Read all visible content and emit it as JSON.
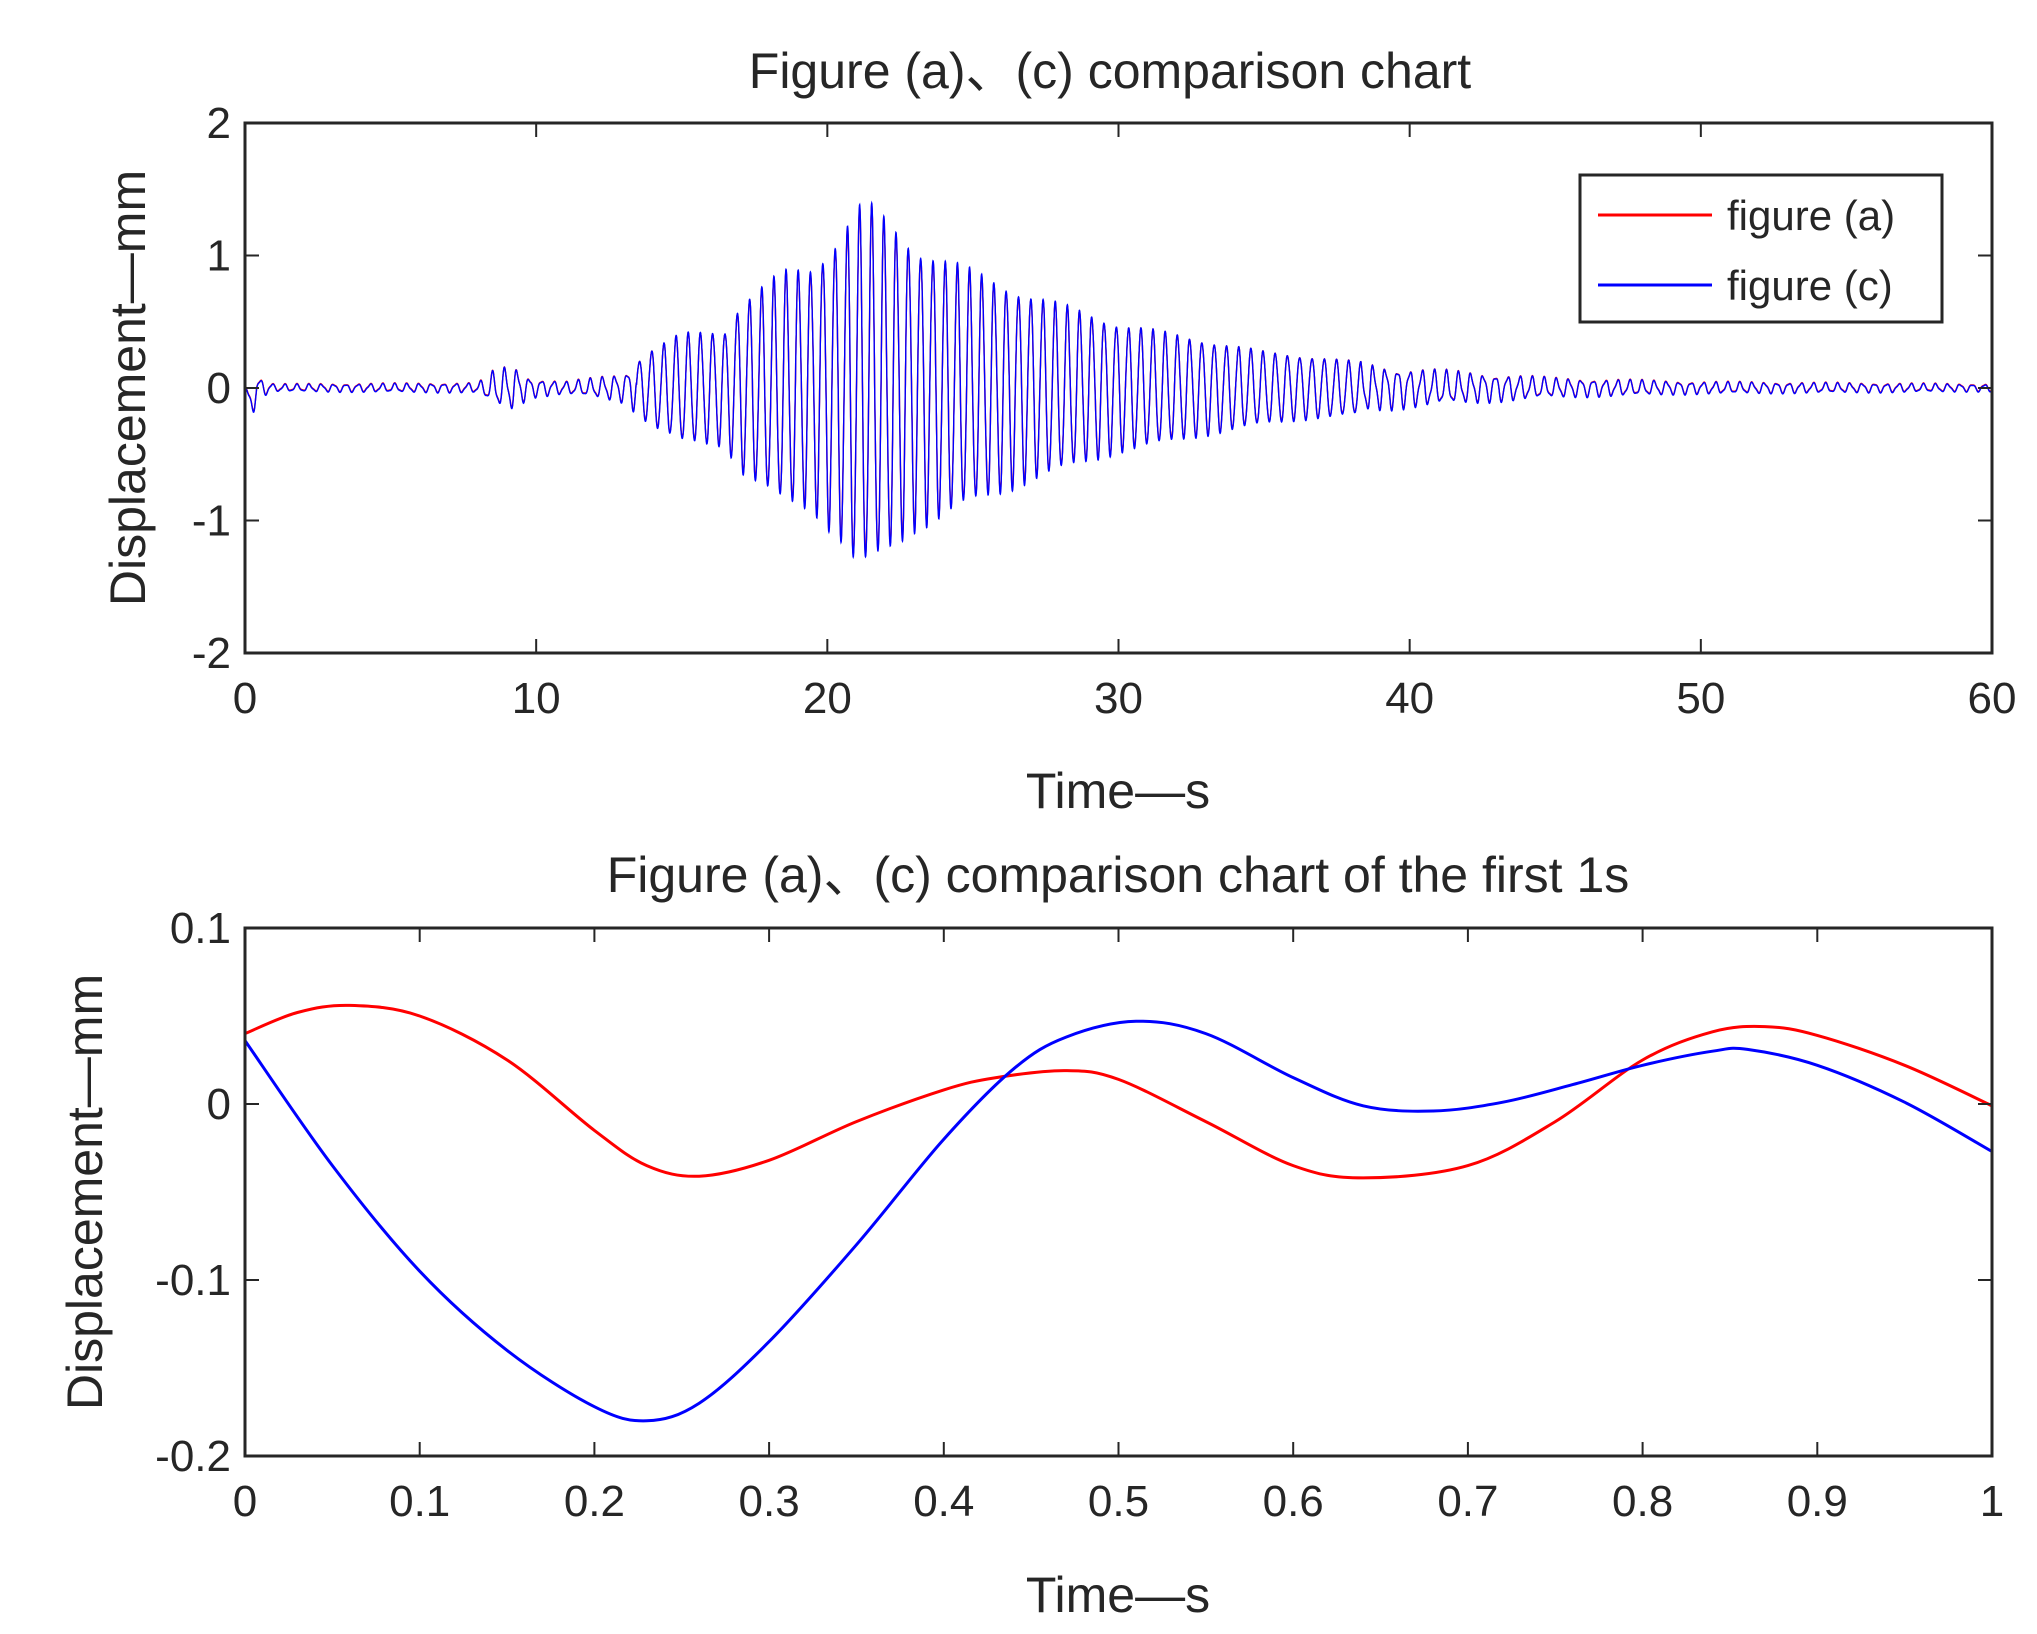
{
  "chart_data": [
    {
      "type": "line",
      "title": "Figure (a)、(c) comparison chart",
      "xlabel": "Time—s",
      "ylabel": "Displacement—mm",
      "xlim": [
        0,
        60
      ],
      "ylim": [
        -2,
        2
      ],
      "xticks": [
        0,
        10,
        20,
        30,
        40,
        50,
        60
      ],
      "yticks": [
        -2,
        -1,
        0,
        1,
        2
      ],
      "xtick_labels": [
        "0",
        "10",
        "20",
        "30",
        "40",
        "50",
        "60"
      ],
      "ytick_labels": [
        "-2",
        "-1",
        "0",
        "1",
        "2"
      ],
      "grid": false,
      "legend_position": "top-right",
      "legend": [
        "figure (a)",
        "figure (c)"
      ],
      "series": [
        {
          "name": "figure (a)",
          "color": "#ff0000"
        },
        {
          "name": "figure (c)",
          "color": "#0000ff"
        }
      ],
      "oscillation_period_s": 0.42,
      "envelope": {
        "x": [
          0,
          0.3,
          1,
          8,
          8.6,
          9.2,
          9.8,
          11,
          12,
          13,
          14,
          15,
          16.5,
          17,
          18.5,
          19.5,
          20.5,
          21,
          21.5,
          22,
          23,
          25,
          27,
          30,
          35,
          40,
          45,
          50,
          55,
          60
        ],
        "y": [
          0.06,
          0.1,
          0.03,
          0.04,
          0.15,
          0.18,
          0.08,
          0.05,
          0.08,
          0.12,
          0.3,
          0.42,
          0.45,
          0.65,
          0.9,
          0.95,
          1.2,
          1.4,
          1.4,
          1.3,
          1.1,
          0.9,
          0.72,
          0.5,
          0.28,
          0.16,
          0.08,
          0.05,
          0.04,
          0.03
        ]
      }
    },
    {
      "type": "line",
      "title": "Figure (a)、(c) comparison chart of the first 1s",
      "xlabel": "Time—s",
      "ylabel": "Displacement—mm",
      "xlim": [
        0,
        1
      ],
      "ylim": [
        -0.2,
        0.1
      ],
      "xticks": [
        0,
        0.1,
        0.2,
        0.3,
        0.4,
        0.5,
        0.6,
        0.7,
        0.8,
        0.9,
        1
      ],
      "yticks": [
        -0.2,
        -0.1,
        0,
        0.1
      ],
      "xtick_labels": [
        "0",
        "0.1",
        "0.2",
        "0.3",
        "0.4",
        "0.5",
        "0.6",
        "0.7",
        "0.8",
        "0.9",
        "1"
      ],
      "ytick_labels": [
        "-0.2",
        "-0.1",
        "0",
        "0.1"
      ],
      "grid": false,
      "series": [
        {
          "name": "figure (a)",
          "color": "#ff0000",
          "x": [
            0,
            0.03,
            0.06,
            0.1,
            0.15,
            0.2,
            0.23,
            0.26,
            0.3,
            0.35,
            0.4,
            0.43,
            0.47,
            0.5,
            0.55,
            0.6,
            0.64,
            0.7,
            0.75,
            0.8,
            0.84,
            0.87,
            0.9,
            0.95,
            1.0
          ],
          "y": [
            0.04,
            0.052,
            0.056,
            0.05,
            0.025,
            -0.015,
            -0.035,
            -0.041,
            -0.032,
            -0.01,
            0.008,
            0.015,
            0.019,
            0.014,
            -0.01,
            -0.035,
            -0.042,
            -0.035,
            -0.01,
            0.025,
            0.041,
            0.044,
            0.039,
            0.022,
            -0.001
          ]
        },
        {
          "name": "figure (c)",
          "color": "#0000ff",
          "x": [
            0,
            0.05,
            0.1,
            0.15,
            0.2,
            0.23,
            0.26,
            0.3,
            0.35,
            0.4,
            0.44,
            0.47,
            0.51,
            0.55,
            0.6,
            0.64,
            0.68,
            0.72,
            0.76,
            0.8,
            0.84,
            0.86,
            0.9,
            0.95,
            1.0
          ],
          "y": [
            0.036,
            -0.035,
            -0.095,
            -0.14,
            -0.172,
            -0.18,
            -0.17,
            -0.135,
            -0.08,
            -0.02,
            0.02,
            0.038,
            0.047,
            0.04,
            0.015,
            -0.001,
            -0.004,
            0.001,
            0.011,
            0.022,
            0.03,
            0.031,
            0.022,
            0.001,
            -0.027
          ]
        }
      ]
    }
  ]
}
